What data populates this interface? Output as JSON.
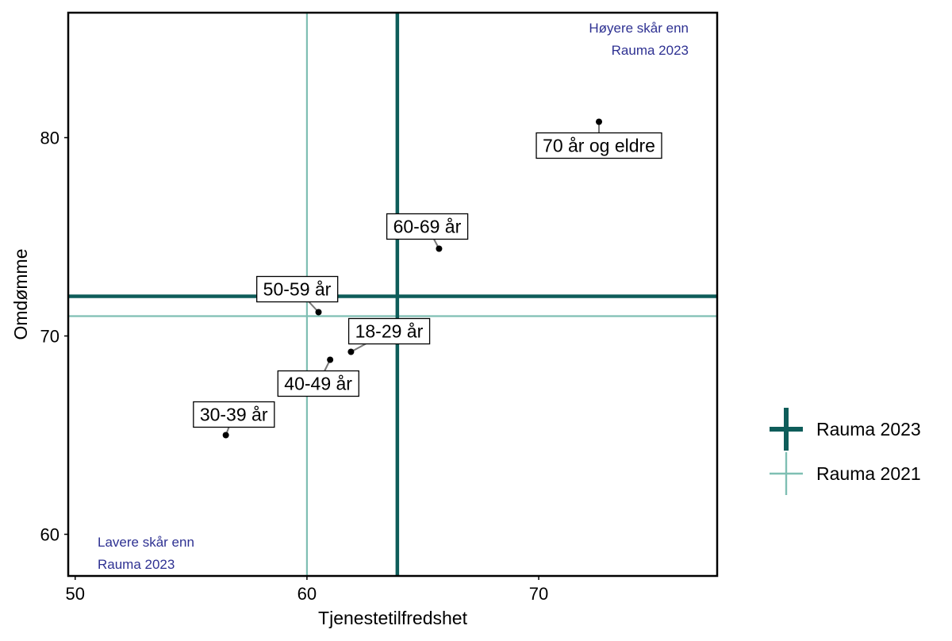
{
  "chart_data": {
    "type": "scatter",
    "xlabel": "Tjenestetilfredshet",
    "ylabel": "Omdømme",
    "xlim": [
      49.7,
      77.7
    ],
    "ylim": [
      57.9,
      86.3
    ],
    "xticks": [
      50,
      60,
      70
    ],
    "yticks": [
      60,
      70,
      80
    ],
    "grid": false,
    "points": [
      {
        "label": "70 år og eldre",
        "x": 72.6,
        "y": 80.8
      },
      {
        "label": "60-69 år",
        "x": 65.7,
        "y": 74.4
      },
      {
        "label": "50-59 år",
        "x": 60.5,
        "y": 71.2
      },
      {
        "label": "18-29 år",
        "x": 61.9,
        "y": 69.2
      },
      {
        "label": "40-49 år",
        "x": 61.0,
        "y": 68.8
      },
      {
        "label": "30-39 år",
        "x": 56.5,
        "y": 65.0
      }
    ],
    "reference_lines": [
      {
        "name": "Rauma 2023",
        "x": 63.9,
        "y": 72.0,
        "color": "#0e5d5a",
        "width": "thick"
      },
      {
        "name": "Rauma 2021",
        "x": 60.0,
        "y": 71.0,
        "color": "#7fbfb3",
        "width": "thin"
      }
    ],
    "annotations": {
      "upper_right": [
        "Høyere skår enn",
        "Rauma 2023"
      ],
      "lower_left": [
        "Lavere skår enn",
        "Rauma 2023"
      ],
      "color": "#2e3192"
    },
    "legend": {
      "position": "right",
      "items": [
        "Rauma 2023",
        "Rauma 2021"
      ]
    }
  }
}
